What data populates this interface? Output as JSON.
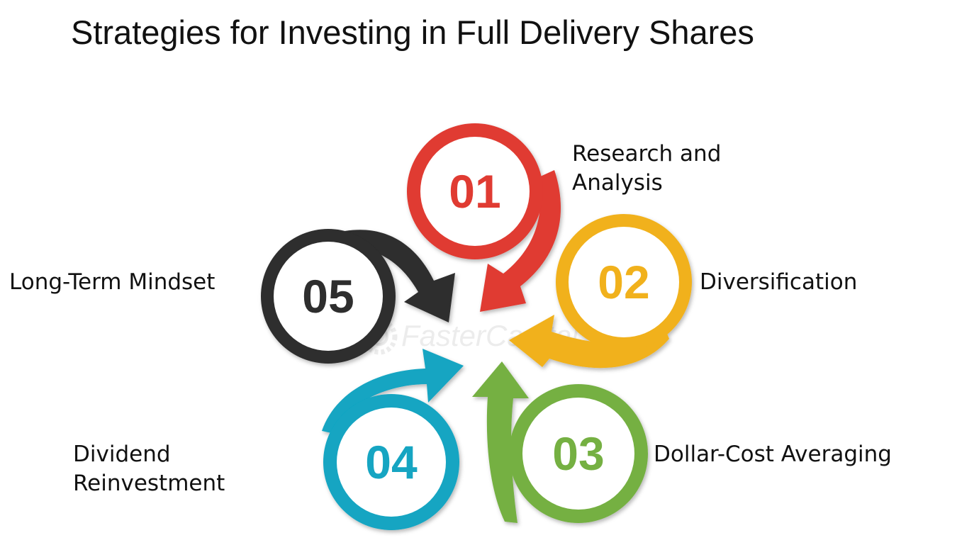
{
  "title": "Strategies for Investing in Full Delivery Shares",
  "watermark": "FasterCapital",
  "steps": [
    {
      "number": "01",
      "label_lines": [
        "Research and",
        "Analysis"
      ],
      "color": "#e03a32"
    },
    {
      "number": "02",
      "label_lines": [
        "Diversification"
      ],
      "color": "#f1b11b"
    },
    {
      "number": "03",
      "label_lines": [
        "Dollar-Cost Averaging"
      ],
      "color": "#75b043"
    },
    {
      "number": "04",
      "label_lines": [
        "Dividend",
        "Reinvestment"
      ],
      "color": "#12a5c2"
    },
    {
      "number": "05",
      "label_lines": [
        "Long-Term Mindset"
      ],
      "color": "#2d2d2d"
    }
  ]
}
